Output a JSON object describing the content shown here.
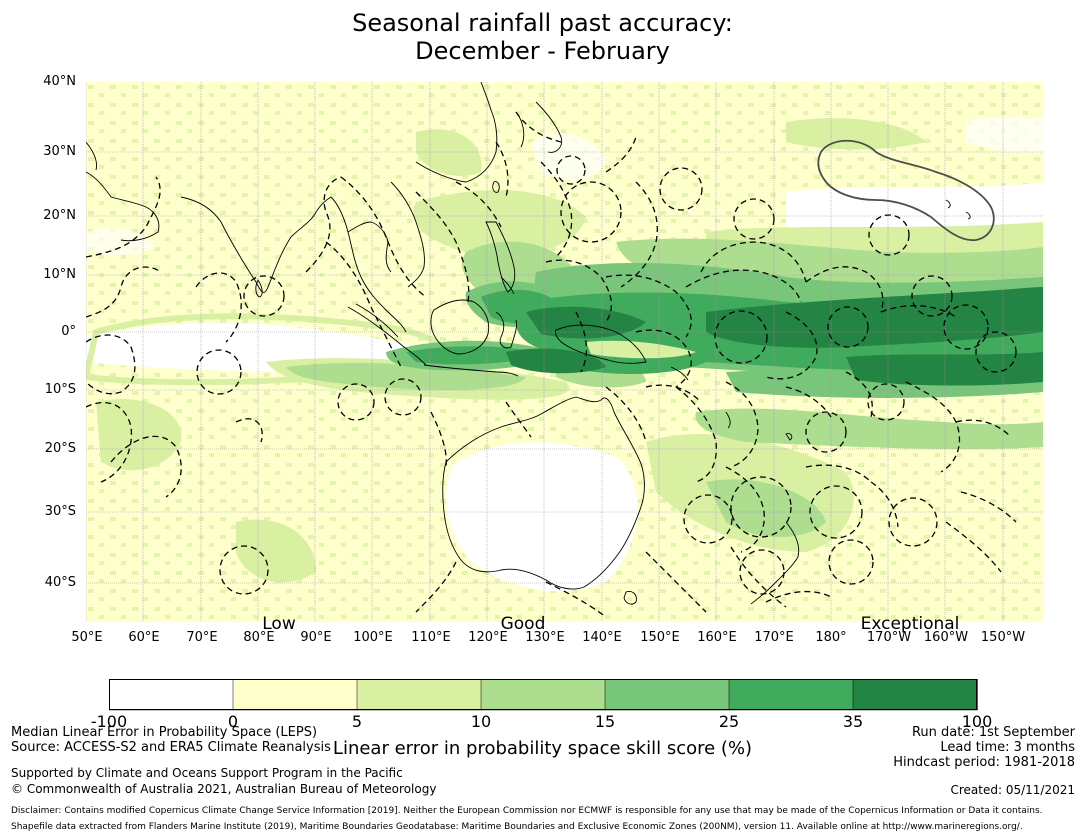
{
  "title": {
    "line1": "Seasonal rainfall past accuracy:",
    "line2": "December - February"
  },
  "map": {
    "lat_labels": [
      "40°N",
      "30°N",
      "20°N",
      "10°N",
      "0°",
      "10°S",
      "20°S",
      "30°S",
      "40°S"
    ],
    "lon_labels": [
      "50°E",
      "60°E",
      "70°E",
      "80°E",
      "90°E",
      "100°E",
      "110°E",
      "120°E",
      "130°E",
      "140°E",
      "150°E",
      "160°E",
      "170°E",
      "180°",
      "170°W",
      "160°W",
      "150°W"
    ],
    "skill_labels": [
      "Low",
      "Good",
      "Exceptional"
    ],
    "colors": {
      "c0": "#ffffff",
      "c1": "#ffffcc",
      "c2": "#d9f0a3",
      "c3": "#addd8e",
      "c4": "#78c679",
      "c5": "#41ab5d",
      "c6": "#238443",
      "land_outline": "#000000",
      "eez_outline": "#000000",
      "hawaii_outline": "#4d4d4d"
    }
  },
  "colorbar": {
    "ticks": [
      "-100",
      "0",
      "5",
      "10",
      "15",
      "25",
      "35",
      "100"
    ],
    "colors": [
      "#ffffff",
      "#ffffcc",
      "#d9f0a3",
      "#addd8e",
      "#78c679",
      "#41ab5d",
      "#238443"
    ],
    "label": "Linear error in probability space skill score (%)"
  },
  "footer": {
    "metric": "Median Linear Error in Probability Space (LEPS)",
    "source": "Source: ACCESS-S2 and ERA5 Climate Reanalysis",
    "support": "Supported by Climate and Oceans Support Program in the Pacific",
    "copyright": "© Commonwealth of Australia 2021, Australian Bureau of Meteorology",
    "run_date": "Run date: 1st September",
    "lead_time": "Lead time: 3 months",
    "hindcast": "Hindcast period: 1981-2018",
    "created": "Created: 05/11/2021",
    "disclaimer": "Disclaimer: Contains modified Copernicus Climate Change Service Information [2019]. Neither the European Commission nor ECMWF is responsible for any use that may be made of the Copernicus Information or Data it contains.",
    "shapefile": "Shapefile data extracted from Flanders Marine Institute (2019), Maritime Boundaries Geodatabase: Maritime Boundaries and Exclusive Economic Zones (200NM), version 11. Available online at http://www.marineregions.org/."
  }
}
